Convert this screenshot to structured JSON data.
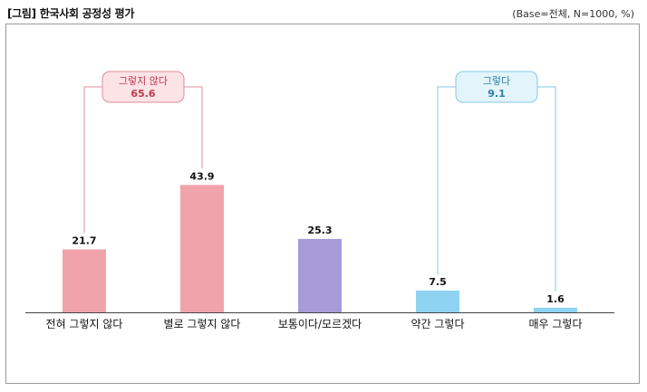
{
  "header": {
    "title": "[그림] 한국사회 공정성 평가",
    "base_note": "(Base=전체, N=1000, %)"
  },
  "chart_data": {
    "type": "bar",
    "categories": [
      "전혀 그렇지 않다",
      "별로 그렇지 않다",
      "보통이다/모르겠다",
      "약간 그렇다",
      "매우 그렇다"
    ],
    "values": [
      21.7,
      43.9,
      25.3,
      7.5,
      1.6
    ],
    "value_labels": [
      "21.7",
      "43.9",
      "25.3",
      "7.5",
      "1.6"
    ],
    "bar_colors": [
      "#f0a3ab",
      "#f0a3ab",
      "#a79bd8",
      "#8fd3f2",
      "#8fd3f2"
    ],
    "ylim": [
      0,
      65
    ],
    "grid": false,
    "groups": [
      {
        "label": "그렇지 않다",
        "value": "65.6",
        "members": [
          0,
          1
        ],
        "fill": "#fbe3e6",
        "stroke": "#e28e9a",
        "text_color": "#c0394f"
      },
      {
        "label": "그렇다",
        "value": "9.1",
        "members": [
          3,
          4
        ],
        "fill": "#e3f4fb",
        "stroke": "#86c8e4",
        "text_color": "#2d7fa6"
      }
    ]
  }
}
